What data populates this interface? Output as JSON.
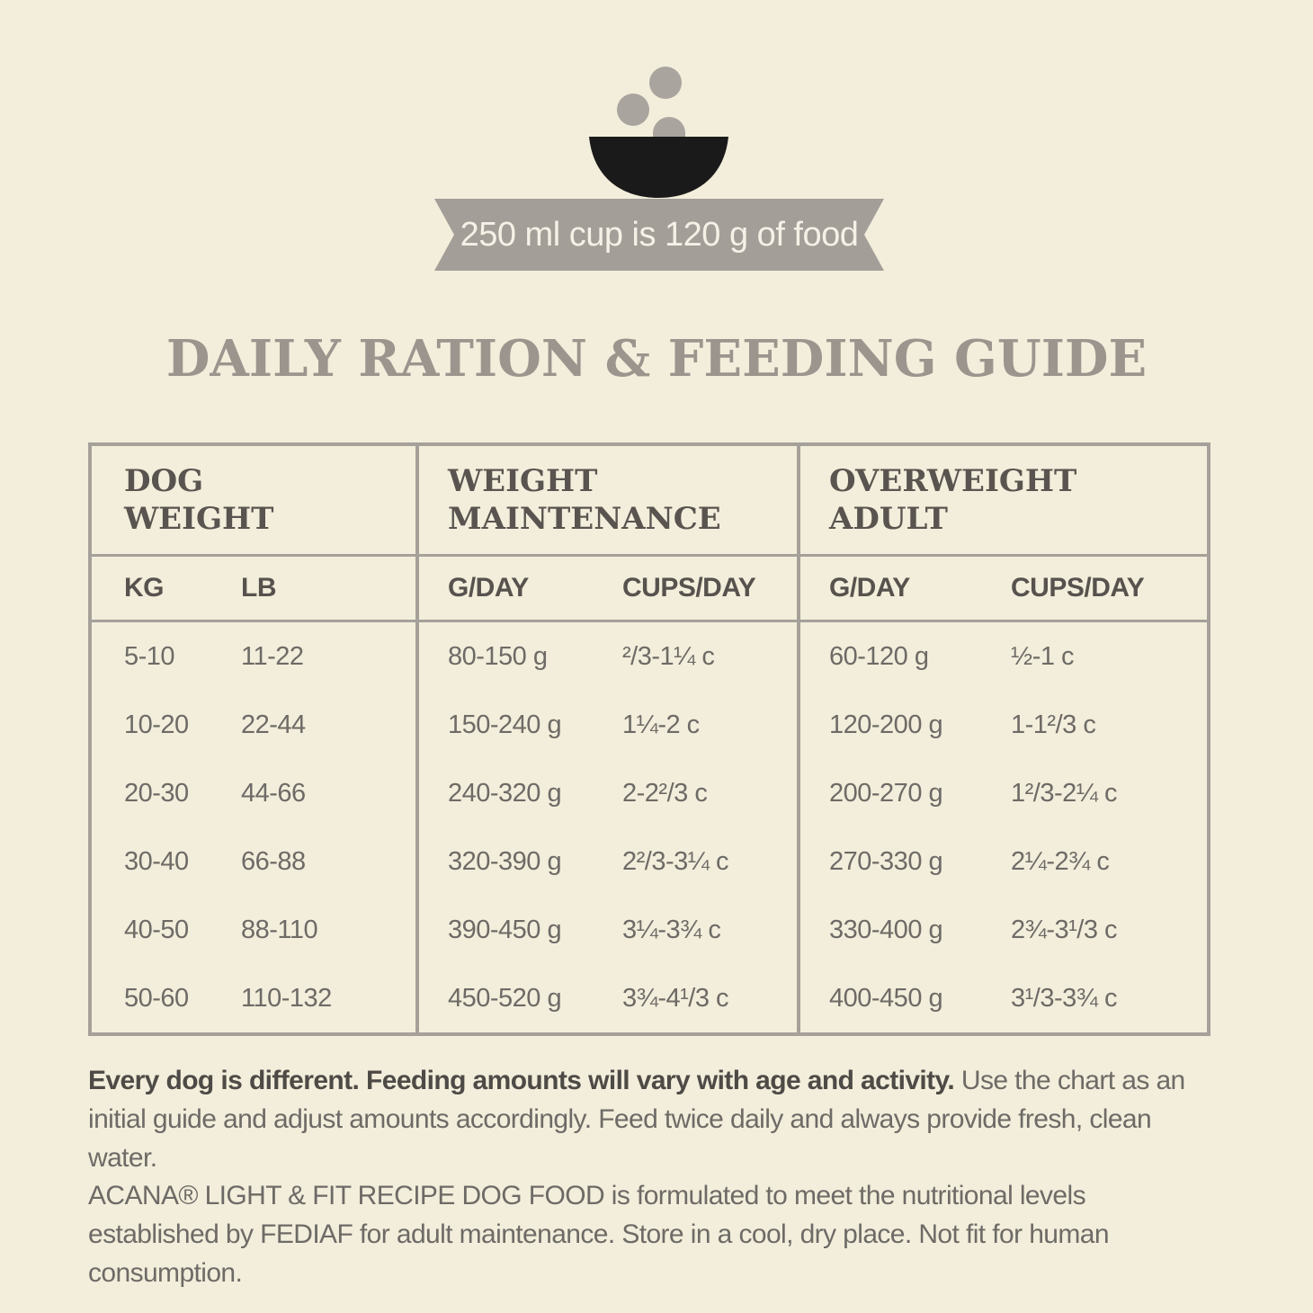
{
  "icon": "food-bowl-icon",
  "ribbon": {
    "text": "250 ml cup is 120 g of food"
  },
  "title": "DAILY RATION & FEEDING GUIDE",
  "table": {
    "groups": [
      {
        "line1": "DOG",
        "line2": "WEIGHT"
      },
      {
        "line1": "WEIGHT",
        "line2": "MAINTENANCE"
      },
      {
        "line1": "OVERWEIGHT",
        "line2": "ADULT"
      }
    ],
    "columns": [
      "KG",
      "LB",
      "G/DAY",
      "CUPS/DAY",
      "G/DAY",
      "CUPS/DAY"
    ],
    "rows": [
      [
        "5-10",
        "11-22",
        "80-150 g",
        "²/3-1¼ c",
        "60-120 g",
        "½-1 c"
      ],
      [
        "10-20",
        "22-44",
        "150-240 g",
        "1¼-2 c",
        "120-200 g",
        "1-1²/3 c"
      ],
      [
        "20-30",
        "44-66",
        "240-320 g",
        "2-2²/3 c",
        "200-270 g",
        "1²/3-2¼ c"
      ],
      [
        "30-40",
        "66-88",
        "320-390 g",
        "2²/3-3¼ c",
        "270-330 g",
        "2¼-2¾ c"
      ],
      [
        "40-50",
        "88-110",
        "390-450 g",
        "3¼-3¾ c",
        "330-400 g",
        "2¾-3¹/3 c"
      ],
      [
        "50-60",
        "110-132",
        "450-520 g",
        "3¾-4¹/3 c",
        "400-450 g",
        "3¹/3-3¾ c"
      ]
    ]
  },
  "footer": {
    "bold": "Every dog is different. Feeding amounts will vary with age and activity.",
    "normal": " Use the chart as an initial guide and adjust amounts accordingly. Feed twice daily and always provide fresh, clean water.",
    "note": "ACANA® LIGHT & FIT RECIPE DOG FOOD is formulated to meet the nutritional levels established by FEDIAF for adult maintenance. Store in a cool, dry place. Not fit for human consumption."
  },
  "colors": {
    "background": "#f2eedb",
    "accent": "#a39e98",
    "bowl": "#1a1a1a",
    "heading": "#9b958e"
  }
}
